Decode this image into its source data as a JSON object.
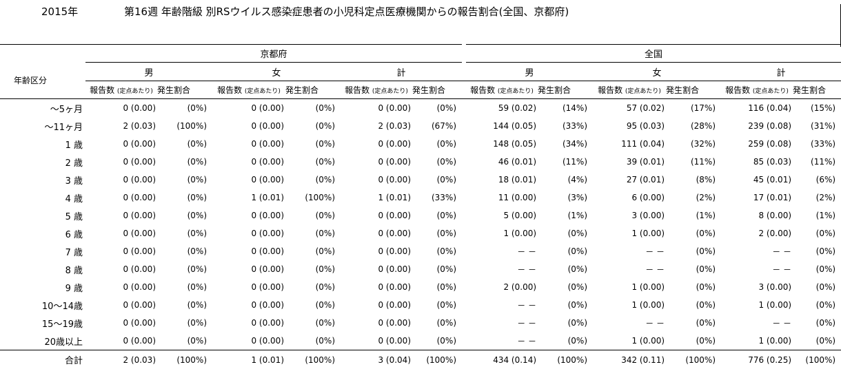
{
  "header": {
    "year": "2015年",
    "title": "第16週 年齢階級 別RSウイルス感染症患者の小児科定点医療機関からの報告割合(全国、京都府)"
  },
  "table": {
    "age_group_label": "年齢区分",
    "regions": [
      "京都府",
      "全国"
    ],
    "sexes": [
      "男",
      "女",
      "計"
    ],
    "sub": {
      "reports": "報告数",
      "per_site": "(定点あたり)",
      "ratio": "発生割合"
    },
    "rows": [
      {
        "age": "〜5ヶ月",
        "cells": [
          [
            "0 (0.00)",
            "(0%)"
          ],
          [
            "0 (0.00)",
            "(0%)"
          ],
          [
            "0 (0.00)",
            "(0%)"
          ],
          [
            "59 (0.02)",
            "(14%)"
          ],
          [
            "57 (0.02)",
            "(17%)"
          ],
          [
            "116 (0.04)",
            "(15%)"
          ]
        ]
      },
      {
        "age": "〜11ヶ月",
        "cells": [
          [
            "2 (0.03)",
            "(100%)"
          ],
          [
            "0 (0.00)",
            "(0%)"
          ],
          [
            "2 (0.03)",
            "(67%)"
          ],
          [
            "144 (0.05)",
            "(33%)"
          ],
          [
            "95 (0.03)",
            "(28%)"
          ],
          [
            "239 (0.08)",
            "(31%)"
          ]
        ]
      },
      {
        "age": "1 歳",
        "cells": [
          [
            "0 (0.00)",
            "(0%)"
          ],
          [
            "0 (0.00)",
            "(0%)"
          ],
          [
            "0 (0.00)",
            "(0%)"
          ],
          [
            "148 (0.05)",
            "(34%)"
          ],
          [
            "111 (0.04)",
            "(32%)"
          ],
          [
            "259 (0.08)",
            "(33%)"
          ]
        ]
      },
      {
        "age": "2 歳",
        "cells": [
          [
            "0 (0.00)",
            "(0%)"
          ],
          [
            "0 (0.00)",
            "(0%)"
          ],
          [
            "0 (0.00)",
            "(0%)"
          ],
          [
            "46 (0.01)",
            "(11%)"
          ],
          [
            "39 (0.01)",
            "(11%)"
          ],
          [
            "85 (0.03)",
            "(11%)"
          ]
        ]
      },
      {
        "age": "3 歳",
        "cells": [
          [
            "0 (0.00)",
            "(0%)"
          ],
          [
            "0 (0.00)",
            "(0%)"
          ],
          [
            "0 (0.00)",
            "(0%)"
          ],
          [
            "18 (0.01)",
            "(4%)"
          ],
          [
            "27 (0.01)",
            "(8%)"
          ],
          [
            "45 (0.01)",
            "(6%)"
          ]
        ]
      },
      {
        "age": "4 歳",
        "cells": [
          [
            "0 (0.00)",
            "(0%)"
          ],
          [
            "1 (0.01)",
            "(100%)"
          ],
          [
            "1 (0.01)",
            "(33%)"
          ],
          [
            "11 (0.00)",
            "(3%)"
          ],
          [
            "6 (0.00)",
            "(2%)"
          ],
          [
            "17 (0.01)",
            "(2%)"
          ]
        ]
      },
      {
        "age": "5 歳",
        "cells": [
          [
            "0 (0.00)",
            "(0%)"
          ],
          [
            "0 (0.00)",
            "(0%)"
          ],
          [
            "0 (0.00)",
            "(0%)"
          ],
          [
            "5 (0.00)",
            "(1%)"
          ],
          [
            "3 (0.00)",
            "(1%)"
          ],
          [
            "8 (0.00)",
            "(1%)"
          ]
        ]
      },
      {
        "age": "6 歳",
        "cells": [
          [
            "0 (0.00)",
            "(0%)"
          ],
          [
            "0 (0.00)",
            "(0%)"
          ],
          [
            "0 (0.00)",
            "(0%)"
          ],
          [
            "1 (0.00)",
            "(0%)"
          ],
          [
            "1 (0.00)",
            "(0%)"
          ],
          [
            "2 (0.00)",
            "(0%)"
          ]
        ]
      },
      {
        "age": "7 歳",
        "cells": [
          [
            "0 (0.00)",
            "(0%)"
          ],
          [
            "0 (0.00)",
            "(0%)"
          ],
          [
            "0 (0.00)",
            "(0%)"
          ],
          [
            "－ －",
            "(0%)"
          ],
          [
            "－ －",
            "(0%)"
          ],
          [
            "－ －",
            "(0%)"
          ]
        ]
      },
      {
        "age": "8 歳",
        "cells": [
          [
            "0 (0.00)",
            "(0%)"
          ],
          [
            "0 (0.00)",
            "(0%)"
          ],
          [
            "0 (0.00)",
            "(0%)"
          ],
          [
            "－ －",
            "(0%)"
          ],
          [
            "－ －",
            "(0%)"
          ],
          [
            "－ －",
            "(0%)"
          ]
        ]
      },
      {
        "age": "9 歳",
        "cells": [
          [
            "0 (0.00)",
            "(0%)"
          ],
          [
            "0 (0.00)",
            "(0%)"
          ],
          [
            "0 (0.00)",
            "(0%)"
          ],
          [
            "2 (0.00)",
            "(0%)"
          ],
          [
            "1 (0.00)",
            "(0%)"
          ],
          [
            "3 (0.00)",
            "(0%)"
          ]
        ]
      },
      {
        "age": "10〜14歳",
        "cells": [
          [
            "0 (0.00)",
            "(0%)"
          ],
          [
            "0 (0.00)",
            "(0%)"
          ],
          [
            "0 (0.00)",
            "(0%)"
          ],
          [
            "－ －",
            "(0%)"
          ],
          [
            "1 (0.00)",
            "(0%)"
          ],
          [
            "1 (0.00)",
            "(0%)"
          ]
        ]
      },
      {
        "age": "15〜19歳",
        "cells": [
          [
            "0 (0.00)",
            "(0%)"
          ],
          [
            "0 (0.00)",
            "(0%)"
          ],
          [
            "0 (0.00)",
            "(0%)"
          ],
          [
            "－ －",
            "(0%)"
          ],
          [
            "－ －",
            "(0%)"
          ],
          [
            "－ －",
            "(0%)"
          ]
        ]
      },
      {
        "age": "20歳以上",
        "cells": [
          [
            "0 (0.00)",
            "(0%)"
          ],
          [
            "0 (0.00)",
            "(0%)"
          ],
          [
            "0 (0.00)",
            "(0%)"
          ],
          [
            "－ －",
            "(0%)"
          ],
          [
            "1 (0.00)",
            "(0%)"
          ],
          [
            "1 (0.00)",
            "(0%)"
          ]
        ]
      }
    ],
    "total": {
      "age": "合計",
      "cells": [
        [
          "2 (0.03)",
          "(100%)"
        ],
        [
          "1 (0.01)",
          "(100%)"
        ],
        [
          "3 (0.04)",
          "(100%)"
        ],
        [
          "434 (0.14)",
          "(100%)"
        ],
        [
          "342 (0.11)",
          "(100%)"
        ],
        [
          "776 (0.25)",
          "(100%)"
        ]
      ]
    }
  }
}
